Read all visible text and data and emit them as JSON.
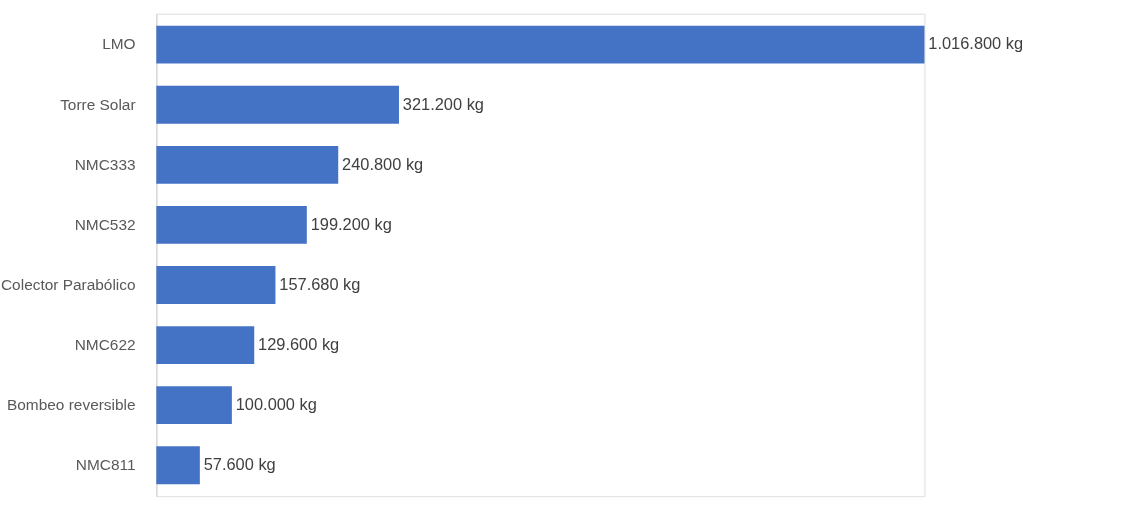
{
  "chart_data": {
    "type": "bar",
    "orientation": "horizontal",
    "categories": [
      "LMO",
      "Torre Solar",
      "NMC333",
      "NMC532",
      "Colector Parabólico",
      "NMC622",
      "Bombeo reversible",
      "NMC811"
    ],
    "values": [
      1016800,
      321200,
      240800,
      199200,
      157680,
      129600,
      100000,
      57600
    ],
    "value_labels": [
      "1.016.800 kg",
      "321.200 kg",
      "240.800 kg",
      "199.200 kg",
      "157.680 kg",
      "129.600 kg",
      "100.000 kg",
      "57.600 kg"
    ],
    "color": "#4472c4"
  }
}
